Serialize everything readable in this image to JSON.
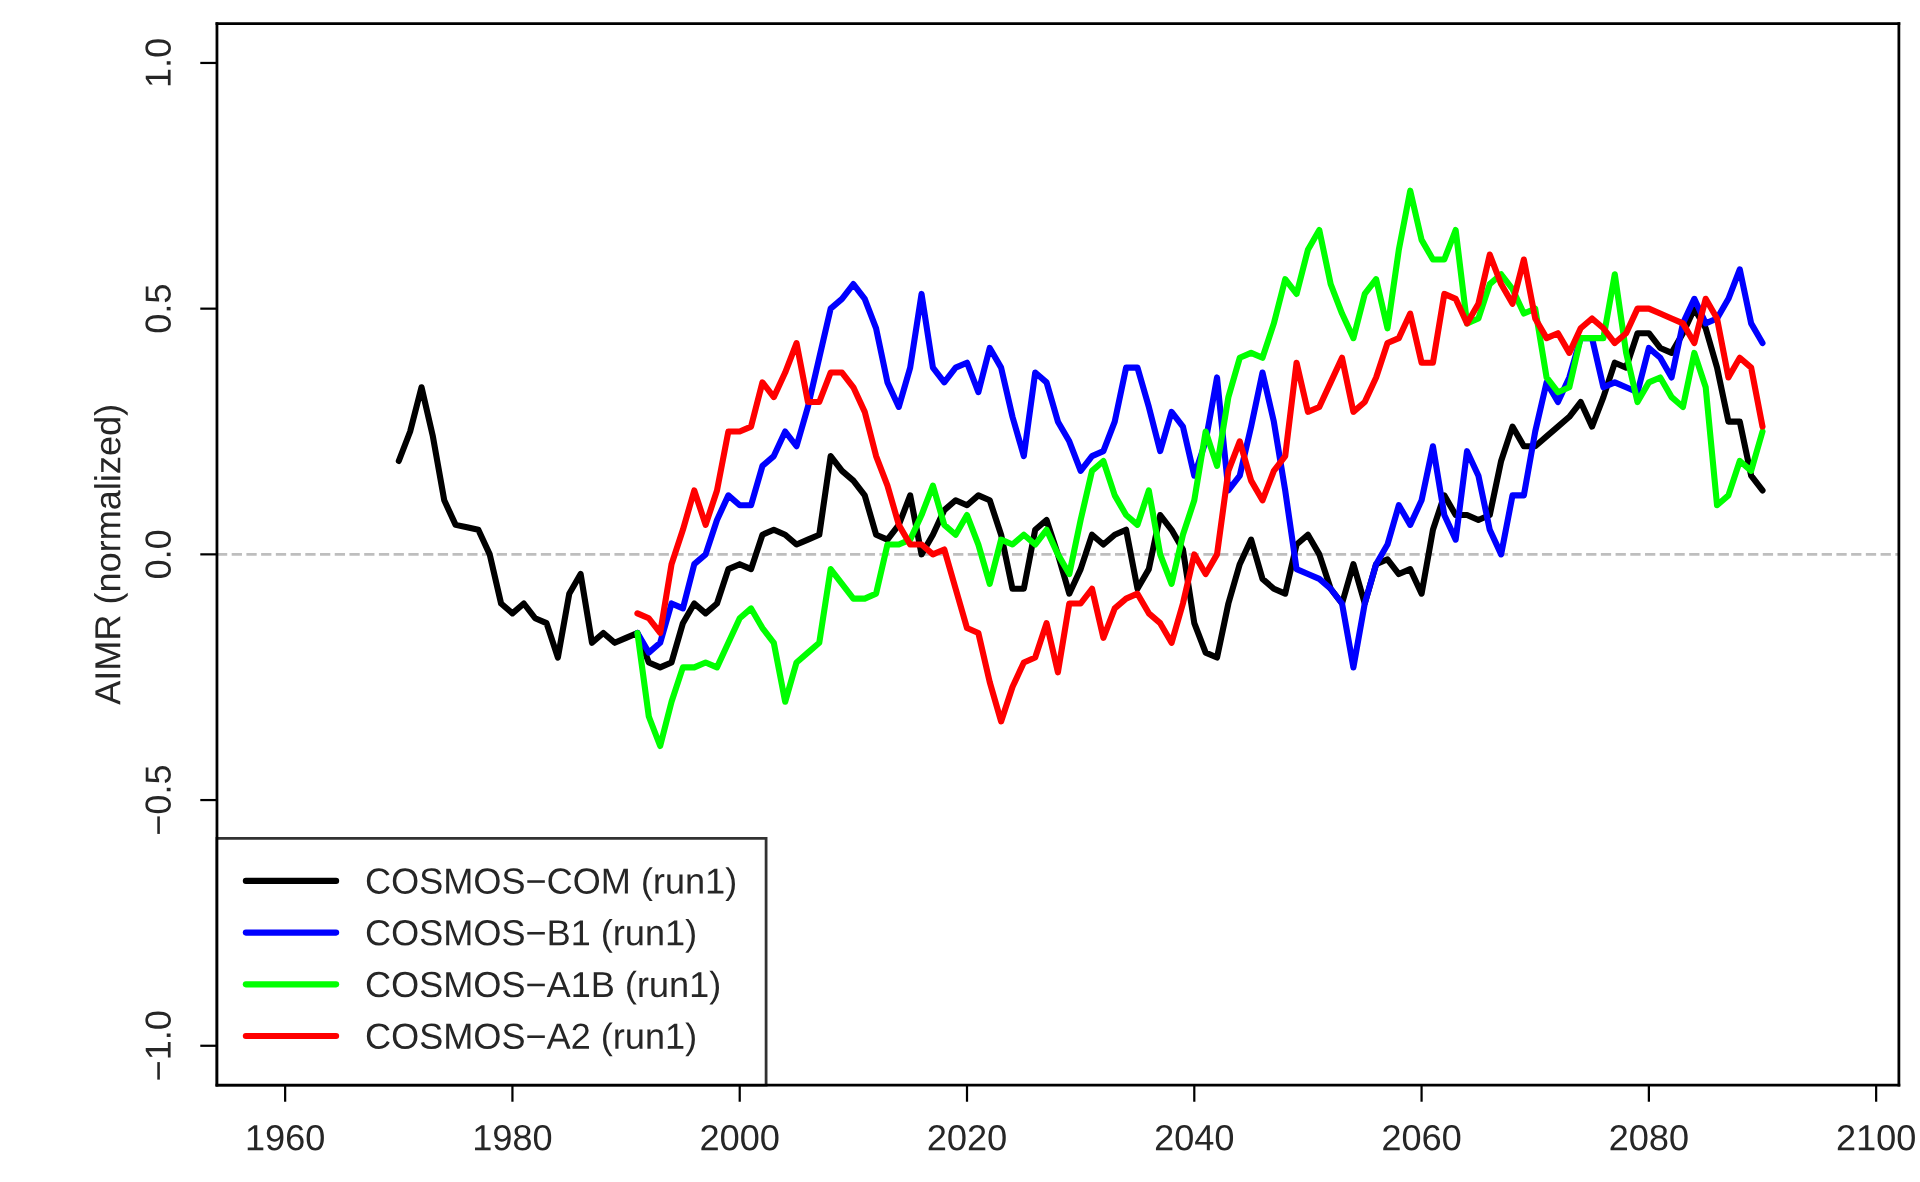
{
  "chart_data": {
    "type": "line",
    "ylabel": "AIMR (normalized)",
    "x": [
      1970,
      1971,
      1972,
      1973,
      1974,
      1975,
      1976,
      1977,
      1978,
      1979,
      1980,
      1981,
      1982,
      1983,
      1984,
      1985,
      1986,
      1987,
      1988,
      1989,
      1990,
      1991,
      1992,
      1993,
      1994,
      1995,
      1996,
      1997,
      1998,
      1999,
      2000,
      2001,
      2002,
      2003,
      2004,
      2005,
      2006,
      2007,
      2008,
      2009,
      2010,
      2011,
      2012,
      2013,
      2014,
      2015,
      2016,
      2017,
      2018,
      2019,
      2020,
      2021,
      2022,
      2023,
      2024,
      2025,
      2026,
      2027,
      2028,
      2029,
      2030,
      2031,
      2032,
      2033,
      2034,
      2035,
      2036,
      2037,
      2038,
      2039,
      2040,
      2041,
      2042,
      2043,
      2044,
      2045,
      2046,
      2047,
      2048,
      2049,
      2050,
      2051,
      2052,
      2053,
      2054,
      2055,
      2056,
      2057,
      2058,
      2059,
      2060,
      2061,
      2062,
      2063,
      2064,
      2065,
      2066,
      2067,
      2068,
      2069,
      2070,
      2071,
      2072,
      2073,
      2074,
      2075,
      2076,
      2077,
      2078,
      2079,
      2080,
      2081,
      2082,
      2083,
      2084,
      2085,
      2086,
      2087,
      2088,
      2089,
      2090
    ],
    "series": [
      {
        "name": "COSMOS−COM (run1)",
        "color": "#000000",
        "values": [
          0.19,
          0.25,
          0.34,
          0.24,
          0.11,
          0.06,
          0.055,
          0.05,
          0.0,
          -0.1,
          -0.12,
          -0.1,
          -0.13,
          -0.14,
          -0.21,
          -0.08,
          -0.04,
          -0.18,
          -0.16,
          -0.18,
          -0.17,
          -0.16,
          -0.22,
          -0.23,
          -0.22,
          -0.14,
          -0.1,
          -0.12,
          -0.1,
          -0.03,
          -0.02,
          -0.03,
          0.04,
          0.05,
          0.04,
          0.02,
          0.03,
          0.04,
          0.2,
          0.17,
          0.15,
          0.12,
          0.04,
          0.03,
          0.06,
          0.12,
          0.0,
          0.04,
          0.09,
          0.11,
          0.1,
          0.12,
          0.11,
          0.04,
          -0.07,
          -0.07,
          0.05,
          0.07,
          0.0,
          -0.08,
          -0.03,
          0.04,
          0.02,
          0.04,
          0.05,
          -0.07,
          -0.03,
          0.08,
          0.05,
          0.01,
          -0.14,
          -0.2,
          -0.21,
          -0.1,
          -0.02,
          0.03,
          -0.05,
          -0.07,
          -0.08,
          0.02,
          0.04,
          0.0,
          -0.07,
          -0.1,
          -0.02,
          -0.1,
          -0.02,
          -0.01,
          -0.04,
          -0.03,
          -0.08,
          0.05,
          0.12,
          0.08,
          0.08,
          0.07,
          0.08,
          0.19,
          0.26,
          0.22,
          0.22,
          0.24,
          0.26,
          0.28,
          0.31,
          0.26,
          0.32,
          0.39,
          0.38,
          0.45,
          0.45,
          0.42,
          0.41,
          0.45,
          0.5,
          0.46,
          0.38,
          0.27,
          0.27,
          0.16,
          0.13
        ]
      },
      {
        "name": "COSMOS−B1 (run1)",
        "color": "#0000ff",
        "values": [
          null,
          null,
          null,
          null,
          null,
          null,
          null,
          null,
          null,
          null,
          null,
          null,
          null,
          null,
          null,
          null,
          null,
          null,
          null,
          null,
          null,
          -0.16,
          -0.2,
          -0.18,
          -0.1,
          -0.11,
          -0.02,
          0.0,
          0.07,
          0.12,
          0.1,
          0.1,
          0.18,
          0.2,
          0.25,
          0.22,
          0.3,
          0.4,
          0.5,
          0.52,
          0.55,
          0.52,
          0.46,
          0.35,
          0.3,
          0.38,
          0.53,
          0.38,
          0.35,
          0.38,
          0.39,
          0.33,
          0.42,
          0.38,
          0.28,
          0.2,
          0.37,
          0.35,
          0.27,
          0.23,
          0.17,
          0.2,
          0.21,
          0.27,
          0.38,
          0.38,
          0.3,
          0.21,
          0.29,
          0.26,
          0.16,
          0.23,
          0.36,
          0.13,
          0.16,
          0.26,
          0.37,
          0.27,
          0.13,
          -0.03,
          -0.04,
          -0.05,
          -0.07,
          -0.1,
          -0.23,
          -0.1,
          -0.02,
          0.02,
          0.1,
          0.06,
          0.11,
          0.22,
          0.08,
          0.03,
          0.21,
          0.16,
          0.05,
          0.0,
          0.12,
          0.12,
          0.25,
          0.35,
          0.31,
          0.36,
          0.44,
          0.44,
          0.34,
          0.35,
          0.34,
          0.33,
          0.42,
          0.4,
          0.36,
          0.47,
          0.52,
          0.47,
          0.48,
          0.52,
          0.58,
          0.47,
          0.43
        ]
      },
      {
        "name": "COSMOS−A1B (run1)",
        "color": "#00ff00",
        "values": [
          null,
          null,
          null,
          null,
          null,
          null,
          null,
          null,
          null,
          null,
          null,
          null,
          null,
          null,
          null,
          null,
          null,
          null,
          null,
          null,
          null,
          -0.16,
          -0.33,
          -0.39,
          -0.3,
          -0.23,
          -0.23,
          -0.22,
          -0.23,
          -0.18,
          -0.13,
          -0.11,
          -0.15,
          -0.18,
          -0.3,
          -0.22,
          -0.2,
          -0.18,
          -0.03,
          -0.06,
          -0.09,
          -0.09,
          -0.08,
          0.02,
          0.02,
          0.03,
          0.08,
          0.14,
          0.06,
          0.04,
          0.08,
          0.02,
          -0.06,
          0.03,
          0.02,
          0.04,
          0.02,
          0.05,
          0.0,
          -0.04,
          0.07,
          0.17,
          0.19,
          0.12,
          0.08,
          0.06,
          0.13,
          0.0,
          -0.06,
          0.04,
          0.11,
          0.25,
          0.18,
          0.32,
          0.4,
          0.41,
          0.4,
          0.47,
          0.56,
          0.53,
          0.62,
          0.66,
          0.55,
          0.49,
          0.44,
          0.53,
          0.56,
          0.46,
          0.62,
          0.74,
          0.64,
          0.6,
          0.6,
          0.66,
          0.47,
          0.48,
          0.55,
          0.57,
          0.54,
          0.49,
          0.5,
          0.36,
          0.33,
          0.34,
          0.44,
          0.44,
          0.44,
          0.57,
          0.41,
          0.31,
          0.35,
          0.36,
          0.32,
          0.3,
          0.41,
          0.34,
          0.1,
          0.12,
          0.19,
          0.17,
          0.25
        ]
      },
      {
        "name": "COSMOS−A2 (run1)",
        "color": "#ff0000",
        "values": [
          null,
          null,
          null,
          null,
          null,
          null,
          null,
          null,
          null,
          null,
          null,
          null,
          null,
          null,
          null,
          null,
          null,
          null,
          null,
          null,
          null,
          -0.12,
          -0.13,
          -0.16,
          -0.02,
          0.05,
          0.13,
          0.06,
          0.13,
          0.25,
          0.25,
          0.26,
          0.35,
          0.32,
          0.37,
          0.43,
          0.31,
          0.31,
          0.37,
          0.37,
          0.34,
          0.29,
          0.2,
          0.14,
          0.06,
          0.02,
          0.02,
          0.0,
          0.01,
          -0.07,
          -0.15,
          -0.16,
          -0.26,
          -0.34,
          -0.27,
          -0.22,
          -0.21,
          -0.14,
          -0.24,
          -0.1,
          -0.1,
          -0.07,
          -0.17,
          -0.11,
          -0.09,
          -0.08,
          -0.12,
          -0.14,
          -0.18,
          -0.1,
          0.0,
          -0.04,
          0.0,
          0.17,
          0.23,
          0.15,
          0.11,
          0.17,
          0.2,
          0.39,
          0.29,
          0.3,
          0.35,
          0.4,
          0.29,
          0.31,
          0.36,
          0.43,
          0.44,
          0.49,
          0.39,
          0.39,
          0.53,
          0.52,
          0.47,
          0.51,
          0.61,
          0.55,
          0.51,
          0.6,
          0.48,
          0.44,
          0.45,
          0.41,
          0.46,
          0.48,
          0.46,
          0.43,
          0.45,
          0.5,
          0.5,
          0.49,
          0.48,
          0.47,
          0.43,
          0.52,
          0.48,
          0.36,
          0.4,
          0.38,
          0.26
        ]
      }
    ],
    "xlim": [
      1954,
      2102
    ],
    "xticks": [
      1960,
      1980,
      2000,
      2020,
      2040,
      2060,
      2080,
      2100
    ],
    "ylim": [
      -1.08,
      1.08
    ],
    "yticks": [
      {
        "value": -1.0,
        "label": "−1.0"
      },
      {
        "value": -0.5,
        "label": "−0.5"
      },
      {
        "value": 0.0,
        "label": "0.0"
      },
      {
        "value": 0.5,
        "label": "0.5"
      },
      {
        "value": 1.0,
        "label": "1.0"
      }
    ],
    "ref_lines": [
      {
        "axis": "y",
        "value": 0,
        "color": "#bebebe",
        "line_style": "dashed"
      }
    ],
    "legend": "bottom left",
    "grid": false,
    "line_style": "solid",
    "marker": "none"
  }
}
